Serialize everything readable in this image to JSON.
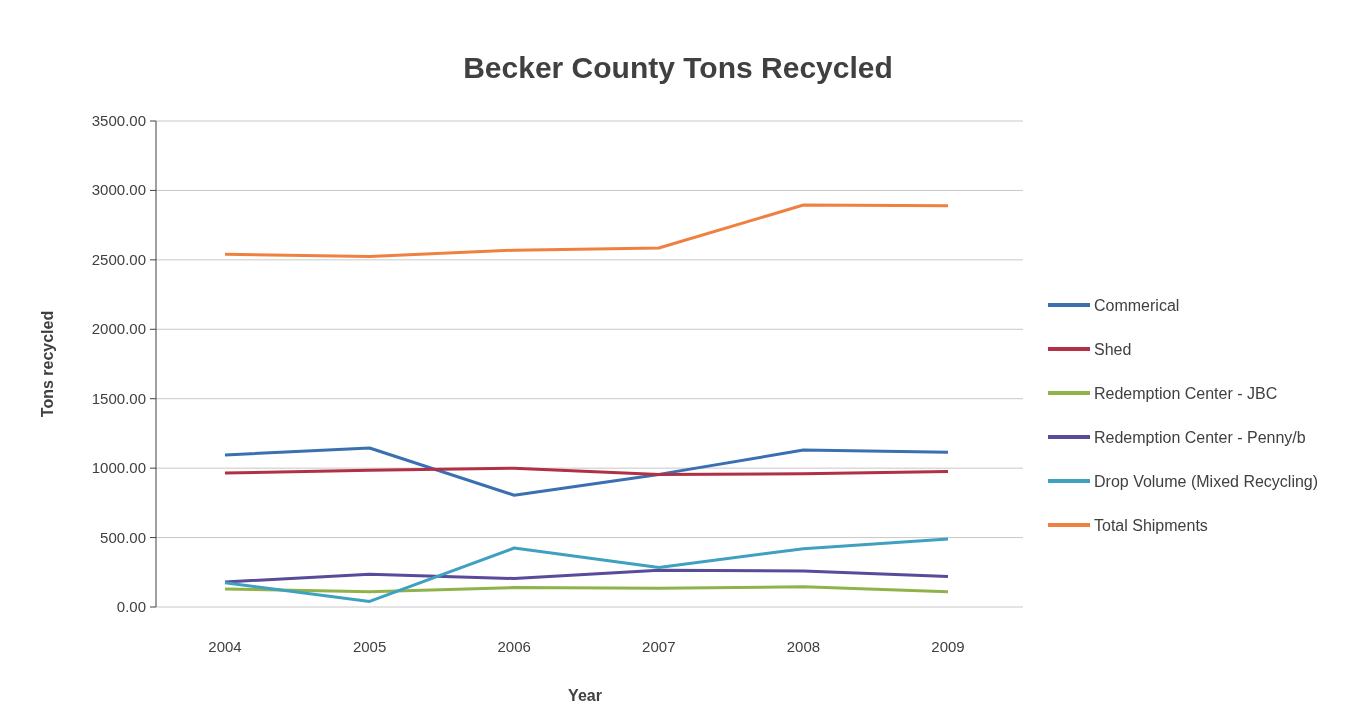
{
  "chart_data": {
    "type": "line",
    "title": "Becker County Tons Recycled",
    "xlabel": "Year",
    "ylabel": "Tons recycled",
    "categories": [
      "2004",
      "2005",
      "2006",
      "2007",
      "2008",
      "2009"
    ],
    "series": [
      {
        "name": "Commerical",
        "color": "#3a6fb0",
        "values": [
          1095,
          1145,
          805,
          955,
          1130,
          1115
        ]
      },
      {
        "name": "Shed",
        "color": "#b03046",
        "values": [
          965,
          985,
          1000,
          955,
          960,
          975
        ]
      },
      {
        "name": "Redemption Center - JBC",
        "color": "#8fb34a",
        "values": [
          130,
          110,
          140,
          135,
          145,
          110
        ]
      },
      {
        "name": "Redemption Center - Penny/b",
        "color": "#5a4a9a",
        "values": [
          180,
          235,
          205,
          265,
          260,
          220
        ]
      },
      {
        "name": "Drop Volume (Mixed Recycling)",
        "color": "#3fa0c0",
        "values": [
          175,
          40,
          425,
          285,
          420,
          490
        ]
      },
      {
        "name": "Total Shipments",
        "color": "#f08040",
        "values": [
          2540,
          2525,
          2570,
          2585,
          2895,
          2890
        ]
      }
    ],
    "ylim": [
      0,
      3500
    ],
    "yticks": [
      {
        "value": 0,
        "label": "0.00"
      },
      {
        "value": 500,
        "label": "500.00"
      },
      {
        "value": 1000,
        "label": "1000.00"
      },
      {
        "value": 1500,
        "label": "1500.00"
      },
      {
        "value": 2000,
        "label": "2000.00"
      },
      {
        "value": 2500,
        "label": "2500.00"
      },
      {
        "value": 3000,
        "label": "3000.00"
      },
      {
        "value": 3500,
        "label": "3500.00"
      }
    ],
    "grid": "y",
    "legend": "right",
    "marker": "none",
    "line_style": "solid"
  }
}
